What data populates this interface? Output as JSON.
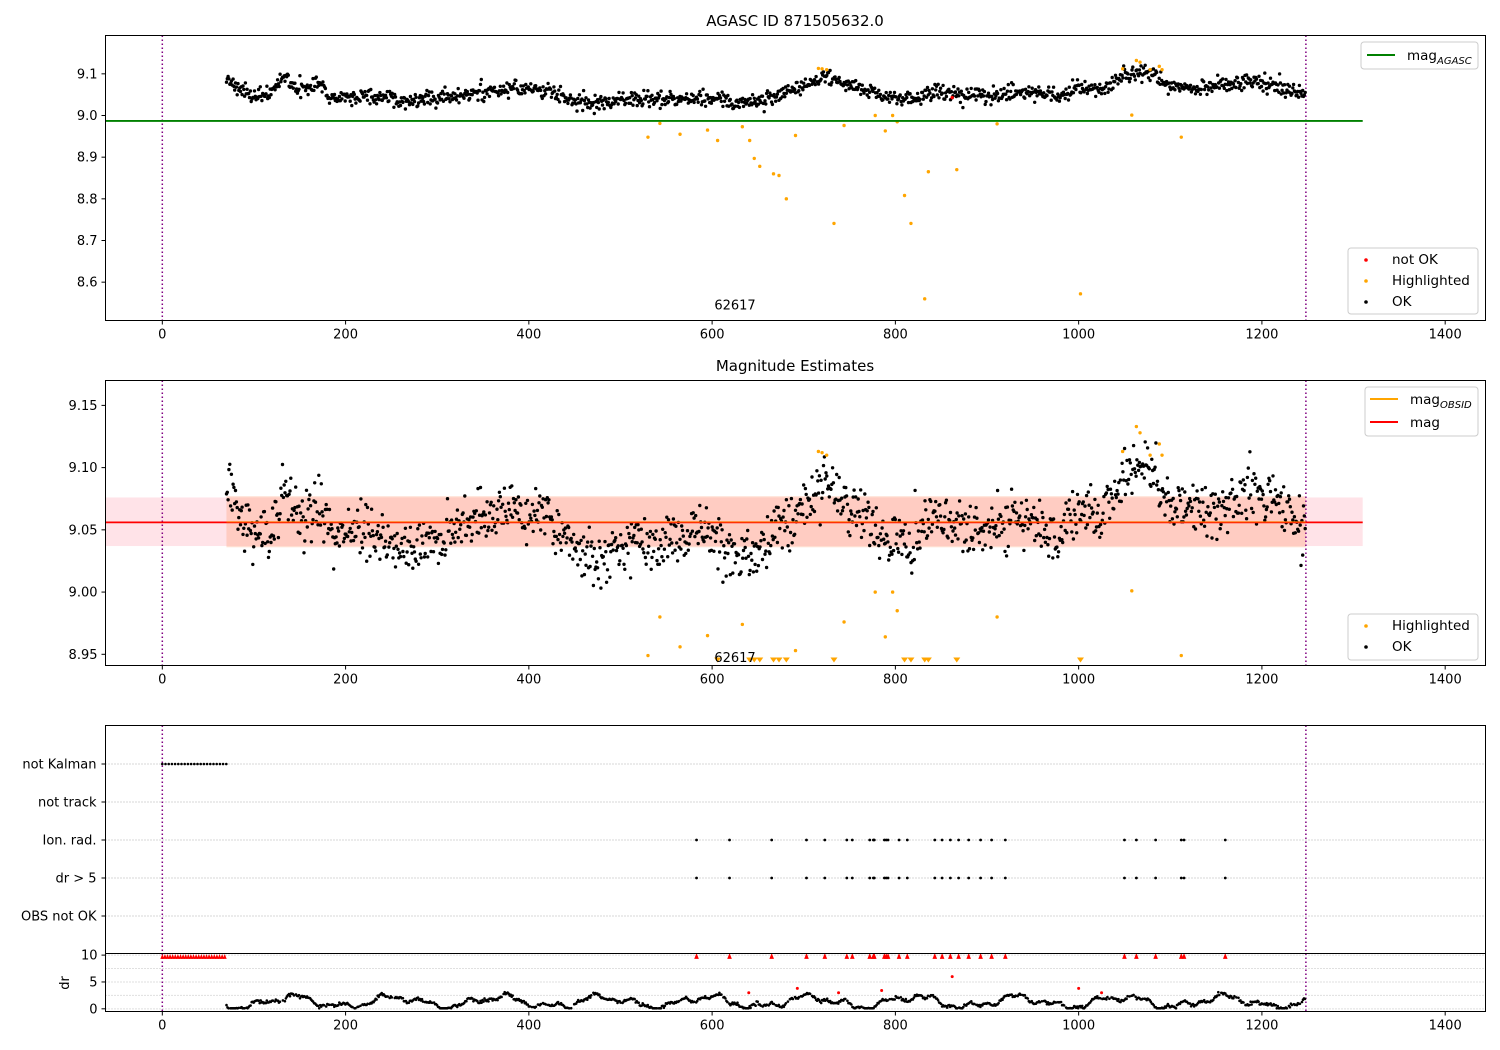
{
  "chart_data": [
    {
      "type": "scatter",
      "title": "AGASC ID 871505632.0",
      "xlim": [
        -62,
        1444
      ],
      "ylim": [
        8.508,
        9.192
      ],
      "x_ticks": [
        0,
        200,
        400,
        600,
        800,
        1000,
        1200,
        1400
      ],
      "y_ticks": [
        8.6,
        8.7,
        8.8,
        8.9,
        9.0,
        9.1
      ],
      "vlines": [
        0,
        1248
      ],
      "hline": {
        "y": 8.987,
        "x_range": [
          -62,
          1310
        ],
        "color": "#008000"
      },
      "annotation": {
        "text": "62617",
        "x": 625,
        "y": 8.535
      },
      "legend_top": {
        "placement": "upper right",
        "entries": [
          {
            "label": "mag",
            "subscript": "AGASC",
            "color": "#008000"
          }
        ]
      },
      "legend_bottom": {
        "placement": "lower right",
        "entries": [
          {
            "label": "not OK",
            "color": "#ff0000"
          },
          {
            "label": "Highlighted",
            "color": "#ffa500"
          },
          {
            "label": "OK",
            "color": "#000000"
          }
        ]
      },
      "colors": {
        "ok": "#000000",
        "highlighted": "#ffa500",
        "not_ok": "#ff0000"
      },
      "ok_trend": [
        [
          70,
          9.09
        ],
        [
          80,
          9.07
        ],
        [
          100,
          9.045
        ],
        [
          120,
          9.055
        ],
        [
          135,
          9.09
        ],
        [
          150,
          9.06
        ],
        [
          170,
          9.075
        ],
        [
          190,
          9.04
        ],
        [
          210,
          9.05
        ],
        [
          240,
          9.045
        ],
        [
          270,
          9.035
        ],
        [
          300,
          9.04
        ],
        [
          340,
          9.055
        ],
        [
          380,
          9.065
        ],
        [
          420,
          9.06
        ],
        [
          450,
          9.035
        ],
        [
          480,
          9.03
        ],
        [
          510,
          9.04
        ],
        [
          560,
          9.04
        ],
        [
          600,
          9.04
        ],
        [
          630,
          9.03
        ],
        [
          660,
          9.04
        ],
        [
          700,
          9.07
        ],
        [
          720,
          9.095
        ],
        [
          760,
          9.065
        ],
        [
          790,
          9.04
        ],
        [
          820,
          9.04
        ],
        [
          840,
          9.06
        ],
        [
          870,
          9.05
        ],
        [
          900,
          9.05
        ],
        [
          940,
          9.055
        ],
        [
          980,
          9.05
        ],
        [
          1000,
          9.07
        ],
        [
          1030,
          9.065
        ],
        [
          1050,
          9.1
        ],
        [
          1080,
          9.1
        ],
        [
          1100,
          9.07
        ],
        [
          1140,
          9.065
        ],
        [
          1180,
          9.08
        ],
        [
          1215,
          9.075
        ],
        [
          1235,
          9.055
        ],
        [
          1248,
          9.05
        ]
      ],
      "highlighted": [
        [
          530,
          8.948
        ],
        [
          543,
          8.981
        ],
        [
          565,
          8.955
        ],
        [
          595,
          8.965
        ],
        [
          606,
          8.94
        ],
        [
          633,
          8.973
        ],
        [
          641,
          8.94
        ],
        [
          646,
          8.897
        ],
        [
          652,
          8.878
        ],
        [
          667,
          8.86
        ],
        [
          673,
          8.856
        ],
        [
          681,
          8.8
        ],
        [
          691,
          8.952
        ],
        [
          716,
          9.113
        ],
        [
          720,
          9.112
        ],
        [
          725,
          9.11
        ],
        [
          733,
          8.741
        ],
        [
          744,
          8.976
        ],
        [
          778,
          9.0
        ],
        [
          789,
          8.963
        ],
        [
          797,
          9.0
        ],
        [
          802,
          8.985
        ],
        [
          810,
          8.808
        ],
        [
          817,
          8.741
        ],
        [
          832,
          8.56
        ],
        [
          836,
          8.865
        ],
        [
          867,
          8.87
        ],
        [
          911,
          8.98
        ],
        [
          1002,
          8.572
        ],
        [
          1048,
          9.112
        ],
        [
          1058,
          9.001
        ],
        [
          1063,
          9.132
        ],
        [
          1067,
          9.128
        ],
        [
          1078,
          9.11
        ],
        [
          1088,
          9.118
        ],
        [
          1091,
          9.11
        ],
        [
          1112,
          8.948
        ]
      ],
      "not_ok": [
        [
          862,
          9.043
        ]
      ]
    },
    {
      "type": "scatter",
      "title": "Magnitude Estimates",
      "xlim": [
        -62,
        1444
      ],
      "ylim": [
        8.941,
        9.17
      ],
      "x_ticks": [
        0,
        200,
        400,
        600,
        800,
        1000,
        1200,
        1400
      ],
      "y_ticks": [
        8.95,
        9.0,
        9.05,
        9.1,
        9.15
      ],
      "vlines": [
        0,
        1248
      ],
      "mag_line": {
        "y": 9.056,
        "x_range": [
          -62,
          1310
        ],
        "color": "#ff0000"
      },
      "mag_band": {
        "y_range": [
          9.037,
          9.076
        ],
        "x_range": [
          -62,
          1310
        ],
        "color": "#ffc0cb"
      },
      "obsid_line": {
        "y": 9.056,
        "x_range": [
          70,
          1248
        ],
        "color": "#ffa500"
      },
      "obsid_band": {
        "y_range": [
          9.036,
          9.077
        ],
        "x_range": [
          70,
          1248
        ],
        "color": "#ffa07a"
      },
      "annotation": {
        "text": "62617",
        "x": 625,
        "y": 8.944
      },
      "legend_top": {
        "placement": "upper right",
        "entries": [
          {
            "label": "mag",
            "subscript": "OBSID",
            "color": "#ffa500"
          },
          {
            "label": "mag",
            "subscript": "",
            "color": "#ff0000"
          }
        ]
      },
      "legend_bottom": {
        "placement": "lower right",
        "entries": [
          {
            "label": "Highlighted",
            "color": "#ffa500"
          },
          {
            "label": "OK",
            "color": "#000000"
          }
        ]
      },
      "ok_trend": [
        [
          70,
          9.09
        ],
        [
          80,
          9.07
        ],
        [
          100,
          9.045
        ],
        [
          120,
          9.055
        ],
        [
          135,
          9.085
        ],
        [
          150,
          9.055
        ],
        [
          170,
          9.07
        ],
        [
          190,
          9.04
        ],
        [
          210,
          9.05
        ],
        [
          240,
          9.045
        ],
        [
          270,
          9.035
        ],
        [
          300,
          9.04
        ],
        [
          340,
          9.055
        ],
        [
          380,
          9.065
        ],
        [
          420,
          9.06
        ],
        [
          450,
          9.035
        ],
        [
          480,
          9.025
        ],
        [
          510,
          9.04
        ],
        [
          560,
          9.045
        ],
        [
          600,
          9.04
        ],
        [
          630,
          9.025
        ],
        [
          660,
          9.04
        ],
        [
          700,
          9.07
        ],
        [
          720,
          9.09
        ],
        [
          760,
          9.065
        ],
        [
          790,
          9.04
        ],
        [
          820,
          9.04
        ],
        [
          840,
          9.06
        ],
        [
          870,
          9.05
        ],
        [
          900,
          9.05
        ],
        [
          940,
          9.055
        ],
        [
          980,
          9.045
        ],
        [
          1000,
          9.065
        ],
        [
          1030,
          9.065
        ],
        [
          1050,
          9.095
        ],
        [
          1080,
          9.1
        ],
        [
          1100,
          9.07
        ],
        [
          1140,
          9.065
        ],
        [
          1180,
          9.08
        ],
        [
          1215,
          9.075
        ],
        [
          1235,
          9.055
        ],
        [
          1248,
          9.05
        ]
      ],
      "highlighted": [
        [
          530,
          8.949
        ],
        [
          543,
          8.98
        ],
        [
          565,
          8.956
        ],
        [
          595,
          8.965
        ],
        [
          633,
          8.974
        ],
        [
          691,
          8.953
        ],
        [
          716,
          9.113
        ],
        [
          720,
          9.112
        ],
        [
          725,
          9.11
        ],
        [
          744,
          8.976
        ],
        [
          778,
          9.0
        ],
        [
          789,
          8.964
        ],
        [
          797,
          9.0
        ],
        [
          802,
          8.985
        ],
        [
          911,
          8.98
        ],
        [
          1048,
          9.113
        ],
        [
          1058,
          9.001
        ],
        [
          1063,
          9.133
        ],
        [
          1067,
          9.128
        ],
        [
          1078,
          9.11
        ],
        [
          1088,
          9.119
        ],
        [
          1091,
          9.11
        ],
        [
          1112,
          8.949
        ]
      ],
      "highlighted_clipped_x": [
        606,
        641,
        646,
        652,
        667,
        673,
        681,
        733,
        810,
        817,
        832,
        836,
        867,
        1002
      ]
    },
    {
      "type": "scatter",
      "title": "",
      "xlim": [
        -62,
        1444
      ],
      "categories": [
        "not Kalman",
        "not track",
        "Ion. rad.",
        "dr > 5",
        "OBS not OK"
      ],
      "vlines": [
        0,
        1248
      ],
      "not_kalman_x_range": [
        0,
        70
      ],
      "flag_x": [
        583,
        619,
        665,
        703,
        723,
        747,
        753,
        772,
        776,
        777,
        788,
        790,
        792,
        804,
        813,
        843,
        851,
        860,
        869,
        880,
        893,
        905,
        920,
        1050,
        1063,
        1084,
        1112,
        1115,
        1160
      ]
    },
    {
      "type": "scatter",
      "title": "",
      "ylabel": "dr",
      "xlim": [
        -62,
        1444
      ],
      "ylim": [
        -0.5,
        10.3
      ],
      "x_ticks": [
        0,
        200,
        400,
        600,
        800,
        1000,
        1200,
        1400
      ],
      "y_ticks": [
        0,
        5,
        10
      ],
      "vlines": [
        0,
        1248
      ],
      "clipped_x_range": [
        0,
        70
      ],
      "red_points": [
        [
          640,
          3.0
        ],
        [
          693,
          3.8
        ],
        [
          738,
          3.0
        ],
        [
          785,
          3.4
        ],
        [
          862,
          6.0
        ],
        [
          1000,
          3.8
        ],
        [
          1025,
          3.0
        ]
      ]
    }
  ]
}
